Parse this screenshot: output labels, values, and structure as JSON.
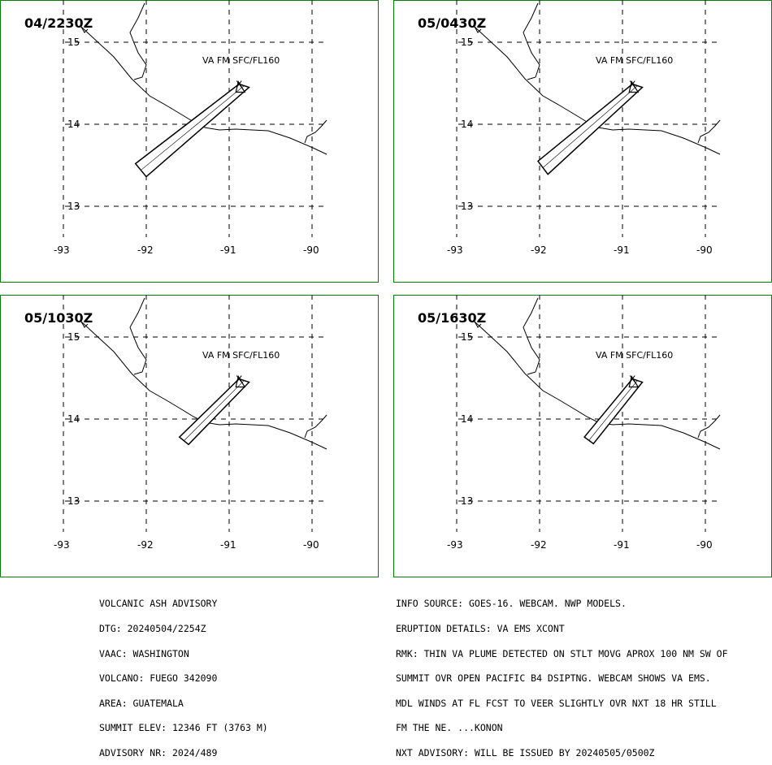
{
  "panels": [
    {
      "time": "04/2230Z",
      "label": "VA FM SFC/FL160",
      "plume": [
        [
          -92.13,
          13.52
        ],
        [
          -90.88,
          14.49
        ],
        [
          -90.76,
          14.45
        ],
        [
          -92.0,
          13.36
        ]
      ]
    },
    {
      "time": "05/0430Z",
      "label": "VA FM SFC/FL160",
      "plume": [
        [
          -92.02,
          13.55
        ],
        [
          -90.88,
          14.49
        ],
        [
          -90.76,
          14.45
        ],
        [
          -91.9,
          13.39
        ]
      ]
    },
    {
      "time": "05/1030Z",
      "label": "VA FM SFC/FL160",
      "plume": [
        [
          -91.6,
          13.78
        ],
        [
          -90.88,
          14.49
        ],
        [
          -90.76,
          14.45
        ],
        [
          -91.49,
          13.69
        ]
      ]
    },
    {
      "time": "05/1630Z",
      "label": "VA FM SFC/FL160",
      "plume": [
        [
          -91.46,
          13.78
        ],
        [
          -90.88,
          14.49
        ],
        [
          -90.76,
          14.45
        ],
        [
          -91.35,
          13.7
        ]
      ]
    }
  ],
  "axes": {
    "lon_ticks": [
      -93,
      -92,
      -91,
      -90
    ],
    "lat_ticks": [
      15,
      14,
      13
    ],
    "lon_labels": [
      "-93",
      "-92",
      "-91",
      "-90"
    ],
    "lat_labels": [
      "15",
      "14",
      "13"
    ]
  },
  "volcano": {
    "lon": -90.88,
    "lat": 14.47
  },
  "info_left": [
    "VOLCANIC ASH ADVISORY",
    "DTG: 20240504/2254Z",
    "VAAC: WASHINGTON",
    "VOLCANO: FUEGO 342090",
    "AREA: GUATEMALA",
    "SUMMIT ELEV: 12346 FT (3763 M)",
    "ADVISORY NR: 2024/489"
  ],
  "info_right": [
    "INFO SOURCE: GOES-16. WEBCAM. NWP MODELS.",
    "ERUPTION DETAILS: VA EMS XCONT",
    "RMK: THIN VA PLUME DETECTED ON STLT MOVG APROX 100 NM SW OF",
    "SUMMIT OVR OPEN PACIFIC B4 DSIPTNG. WEBCAM SHOWS VA EMS.",
    "MDL WINDS AT FL FCST TO VEER SLIGHTLY OVR NXT 18 HR STILL",
    "FM THE NE. ...KONON",
    "NXT ADVISORY: WILL BE ISSUED BY 20240505/0500Z"
  ],
  "colors": {
    "border": "#008000",
    "map": "#000000"
  }
}
